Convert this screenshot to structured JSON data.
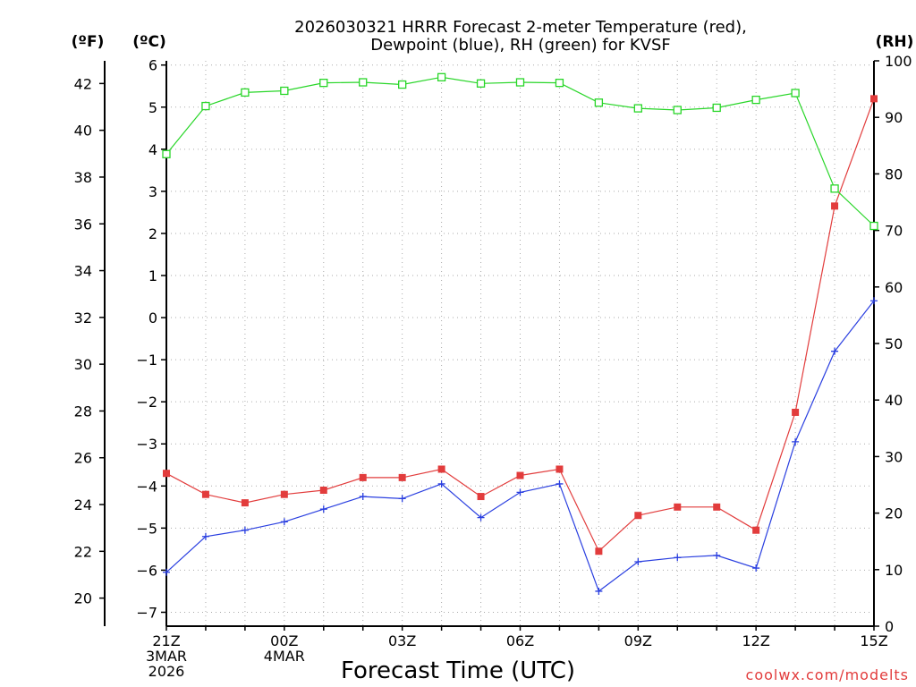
{
  "chart_data": {
    "type": "line",
    "title_line1": "2026030321 HRRR Forecast 2-meter Temperature (red),",
    "title_line2": "Dewpoint (blue), RH (green) for KVSF",
    "xlabel": "Forecast Time (UTC)",
    "credit": "coolwx.com/modelts",
    "x_hours": [
      21,
      22,
      23,
      24,
      25,
      26,
      27,
      28,
      29,
      30,
      31,
      32,
      33,
      34,
      35,
      36,
      37,
      38,
      39
    ],
    "x_ticks": [
      {
        "hour": 21,
        "lines": [
          "21Z",
          "3MAR",
          "2026"
        ]
      },
      {
        "hour": 24,
        "lines": [
          "00Z",
          "4MAR"
        ]
      },
      {
        "hour": 27,
        "lines": [
          "03Z"
        ]
      },
      {
        "hour": 30,
        "lines": [
          "06Z"
        ]
      },
      {
        "hour": 33,
        "lines": [
          "09Z"
        ]
      },
      {
        "hour": 36,
        "lines": [
          "12Z"
        ]
      },
      {
        "hour": 39,
        "lines": [
          "15Z"
        ]
      }
    ],
    "x_range": [
      21,
      39
    ],
    "axes": {
      "f": {
        "label": "(ºF)",
        "range": [
          18.8,
          42.97
        ],
        "ticks": [
          20,
          22,
          24,
          26,
          28,
          30,
          32,
          34,
          36,
          38,
          40,
          42
        ]
      },
      "c": {
        "label": "(ºC)",
        "range": [
          -7.33,
          6.1
        ],
        "ticks": [
          -7,
          -6,
          -5,
          -4,
          -3,
          -2,
          -1,
          0,
          1,
          2,
          3,
          4,
          5,
          6
        ]
      },
      "rh": {
        "label": "(RH)",
        "range": [
          0,
          100
        ],
        "ticks": [
          0,
          10,
          20,
          30,
          40,
          50,
          60,
          70,
          80,
          90,
          100
        ]
      }
    },
    "grid": true,
    "series": [
      {
        "name": "Temperature",
        "units": "C",
        "color": "#e23c3c",
        "marker": "filled-square",
        "values": [
          -3.7,
          -4.2,
          -4.4,
          -4.2,
          -4.1,
          -3.8,
          -3.8,
          -3.6,
          -4.25,
          -3.75,
          -3.6,
          -5.55,
          -4.7,
          -4.5,
          -4.5,
          -5.05,
          -2.25,
          2.65,
          5.2
        ]
      },
      {
        "name": "Dewpoint",
        "units": "C",
        "color": "#2a3fe0",
        "marker": "plus",
        "values": [
          -6.05,
          -5.2,
          -5.05,
          -4.85,
          -4.55,
          -4.25,
          -4.3,
          -3.95,
          -4.75,
          -4.15,
          -3.95,
          -6.5,
          -5.8,
          -5.7,
          -5.65,
          -5.95,
          -2.95,
          -0.8,
          0.4
        ]
      },
      {
        "name": "RH",
        "units": "%",
        "color": "#28d628",
        "marker": "open-square",
        "values": [
          83.5,
          92,
          94.4,
          94.7,
          96.1,
          96.2,
          95.8,
          97.1,
          96,
          96.2,
          96.1,
          92.6,
          91.6,
          91.3,
          91.7,
          93.1,
          94.3,
          77.4,
          70.8
        ]
      }
    ]
  }
}
